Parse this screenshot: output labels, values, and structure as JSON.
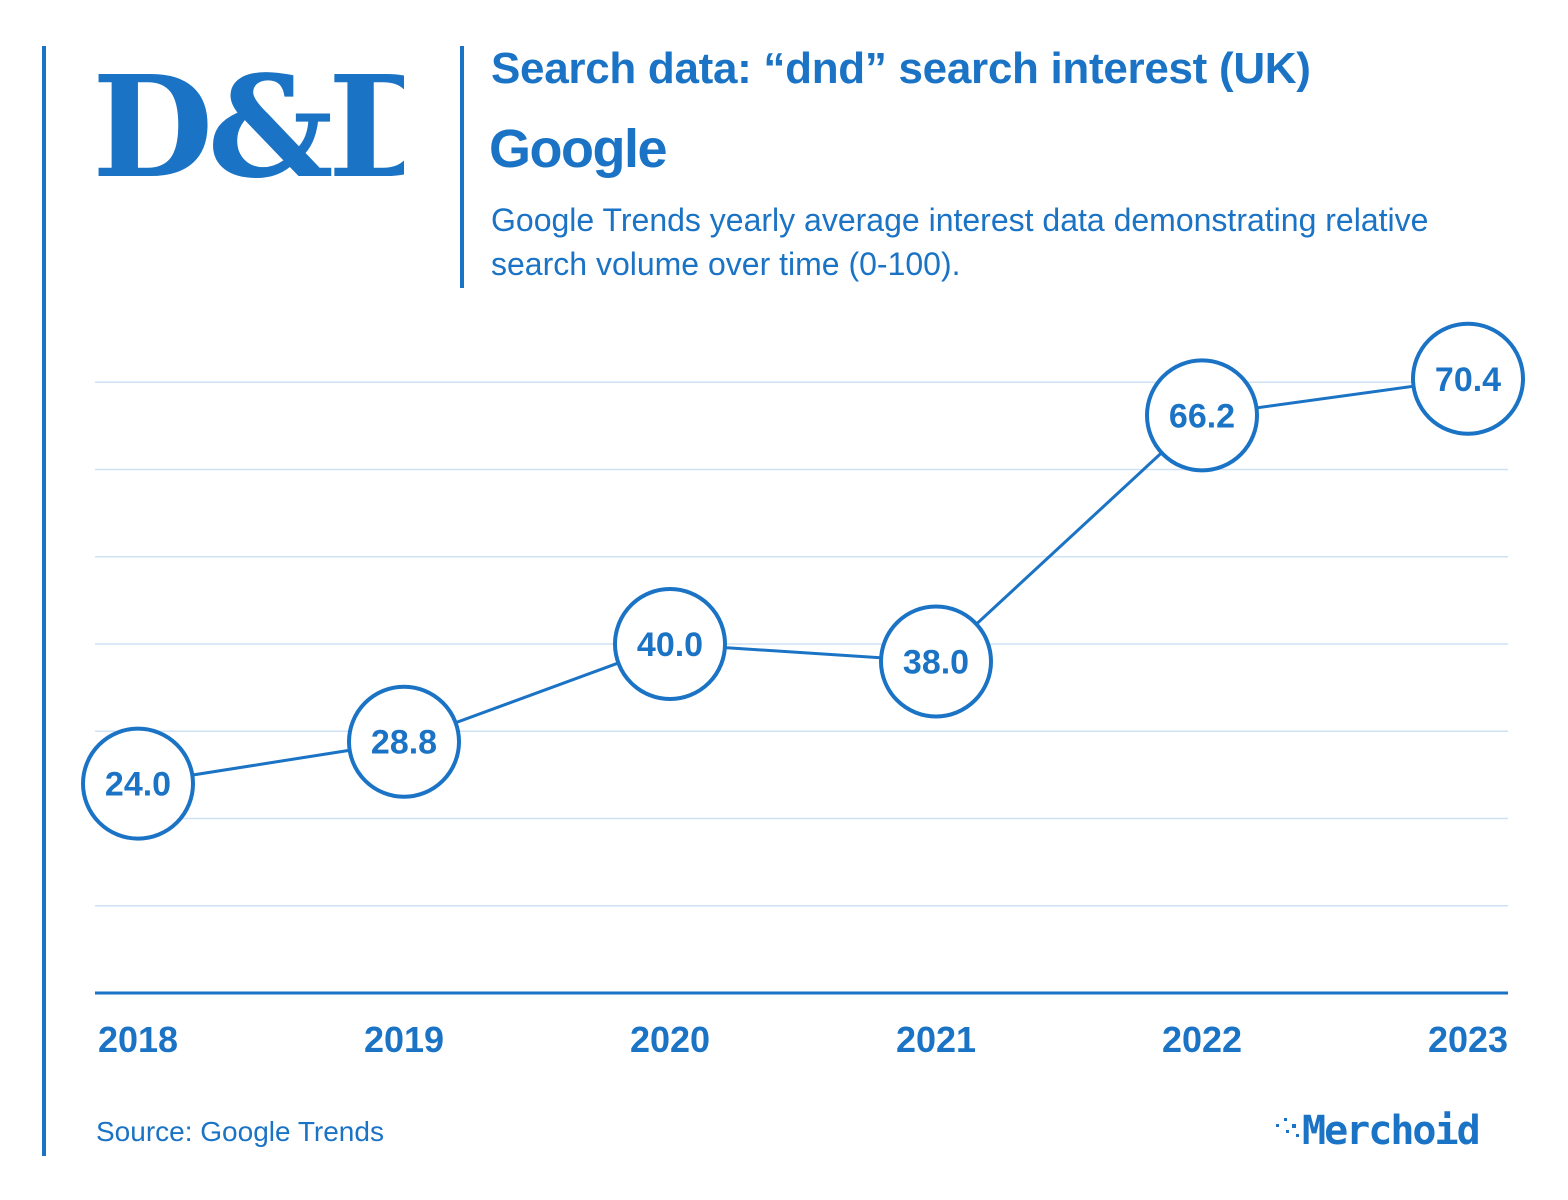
{
  "header": {
    "title": "Search data: “dnd” search interest (UK)",
    "brand": "Google",
    "subtitle": "Google Trends yearly average interest data demonstrating relative search volume over time (0-100)."
  },
  "logos": {
    "dnd_logo_text": "D&D",
    "merchoid_logo_text": "Merchoid"
  },
  "footer": {
    "source": "Source: Google Trends"
  },
  "colors": {
    "primary": "#1a73c4",
    "gridline": "#cfe1f3",
    "background": "#ffffff"
  },
  "chart_data": {
    "type": "line",
    "title": "Search data: “dnd” search interest (UK)",
    "xlabel": "",
    "ylabel": "",
    "categories": [
      "2018",
      "2019",
      "2020",
      "2021",
      "2022",
      "2023"
    ],
    "series": [
      {
        "name": "dnd search interest (UK)",
        "values": [
          24.0,
          28.8,
          40.0,
          38.0,
          66.2,
          70.4
        ],
        "labels": [
          "24.0",
          "28.8",
          "40.0",
          "38.0",
          "66.2",
          "70.4"
        ]
      }
    ],
    "ylim": [
      0,
      80
    ],
    "grid": true,
    "marker": "circle-with-value-label"
  }
}
